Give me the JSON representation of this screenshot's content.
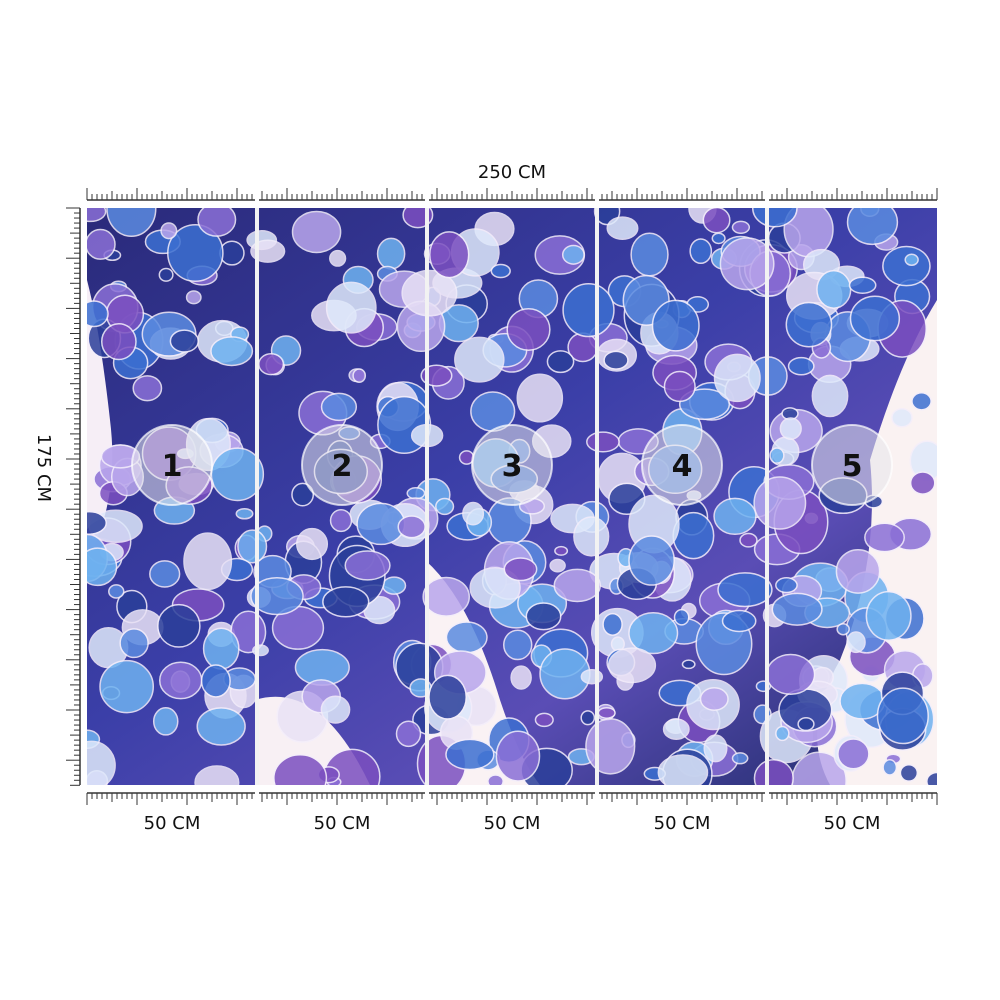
{
  "dimensions": {
    "width_label": "250 CM",
    "height_label": "175 CM"
  },
  "panels": [
    {
      "number": "1",
      "width_label": "50 CM"
    },
    {
      "number": "2",
      "width_label": "50 CM"
    },
    {
      "number": "3",
      "width_label": "50 CM"
    },
    {
      "number": "4",
      "width_label": "50 CM"
    },
    {
      "number": "5",
      "width_label": "50 CM"
    }
  ]
}
